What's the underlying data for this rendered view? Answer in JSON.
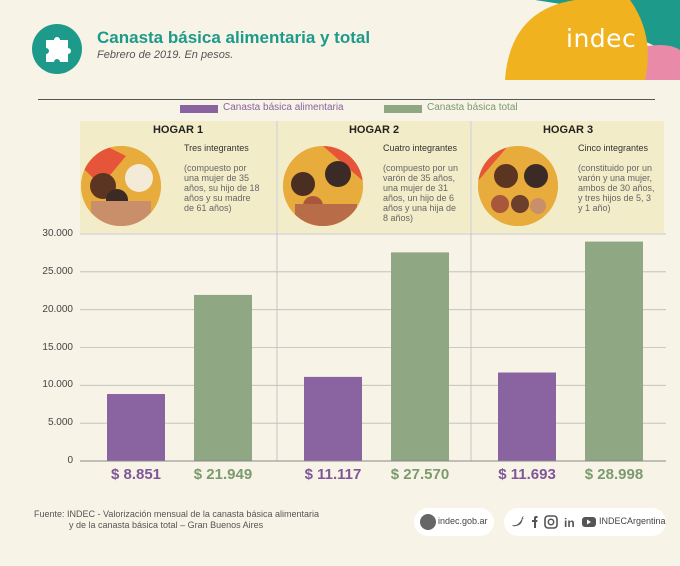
{
  "header": {
    "title": "Canasta básica alimentaria y total",
    "subtitle": "Febrero de 2019. En pesos.",
    "logo": "indec"
  },
  "legend": [
    {
      "label": "Canasta básica alimentaria",
      "color": "#8a63a1"
    },
    {
      "label": "Canasta básica total",
      "color": "#8fa883"
    }
  ],
  "households": [
    {
      "title": "HOGAR 1",
      "count": "Tres integrantes",
      "description": "(compuesto por una mujer de 35 años, su hijo de 18 años y su madre de 61 años)"
    },
    {
      "title": "HOGAR 2",
      "count": "Cuatro integrantes",
      "description": "(compuesto por un varón de 35 años, una mujer de 31 años, un hijo de 6 años y una hija de 8 años)"
    },
    {
      "title": "HOGAR 3",
      "count": "Cinco integrantes",
      "description": "(constituido por un varón y una mujer, ambos de 30 años, y tres hijos de 5, 3 y 1 año)"
    }
  ],
  "chart_data": {
    "type": "bar",
    "categories": [
      "HOGAR 1",
      "HOGAR 2",
      "HOGAR 3"
    ],
    "series": [
      {
        "name": "Canasta básica alimentaria",
        "values": [
          8851,
          11117,
          11693
        ],
        "labels": [
          "$ 8.851",
          "$ 11.117",
          "$ 11.693"
        ],
        "color": "#8a63a1"
      },
      {
        "name": "Canasta básica total",
        "values": [
          21949,
          27570,
          28998
        ],
        "labels": [
          "$ 21.949",
          "$ 27.570",
          "$ 28.998"
        ],
        "color": "#8fa883"
      }
    ],
    "ylim": [
      0,
      30000
    ],
    "yticks": [
      "0",
      "5.000",
      "10.000",
      "15.000",
      "20.000",
      "25.000",
      "30.000"
    ],
    "ytick_values": [
      0,
      5000,
      10000,
      15000,
      20000,
      25000,
      30000
    ],
    "grid": true
  },
  "footer": {
    "source_line1": "Fuente:  INDEC - Valorización mensual de la canasta básica alimentaria",
    "source_line2": "y de la canasta básica total – Gran Buenos Aires",
    "site": "indec.gob.ar",
    "handle": "INDECArgentina"
  }
}
